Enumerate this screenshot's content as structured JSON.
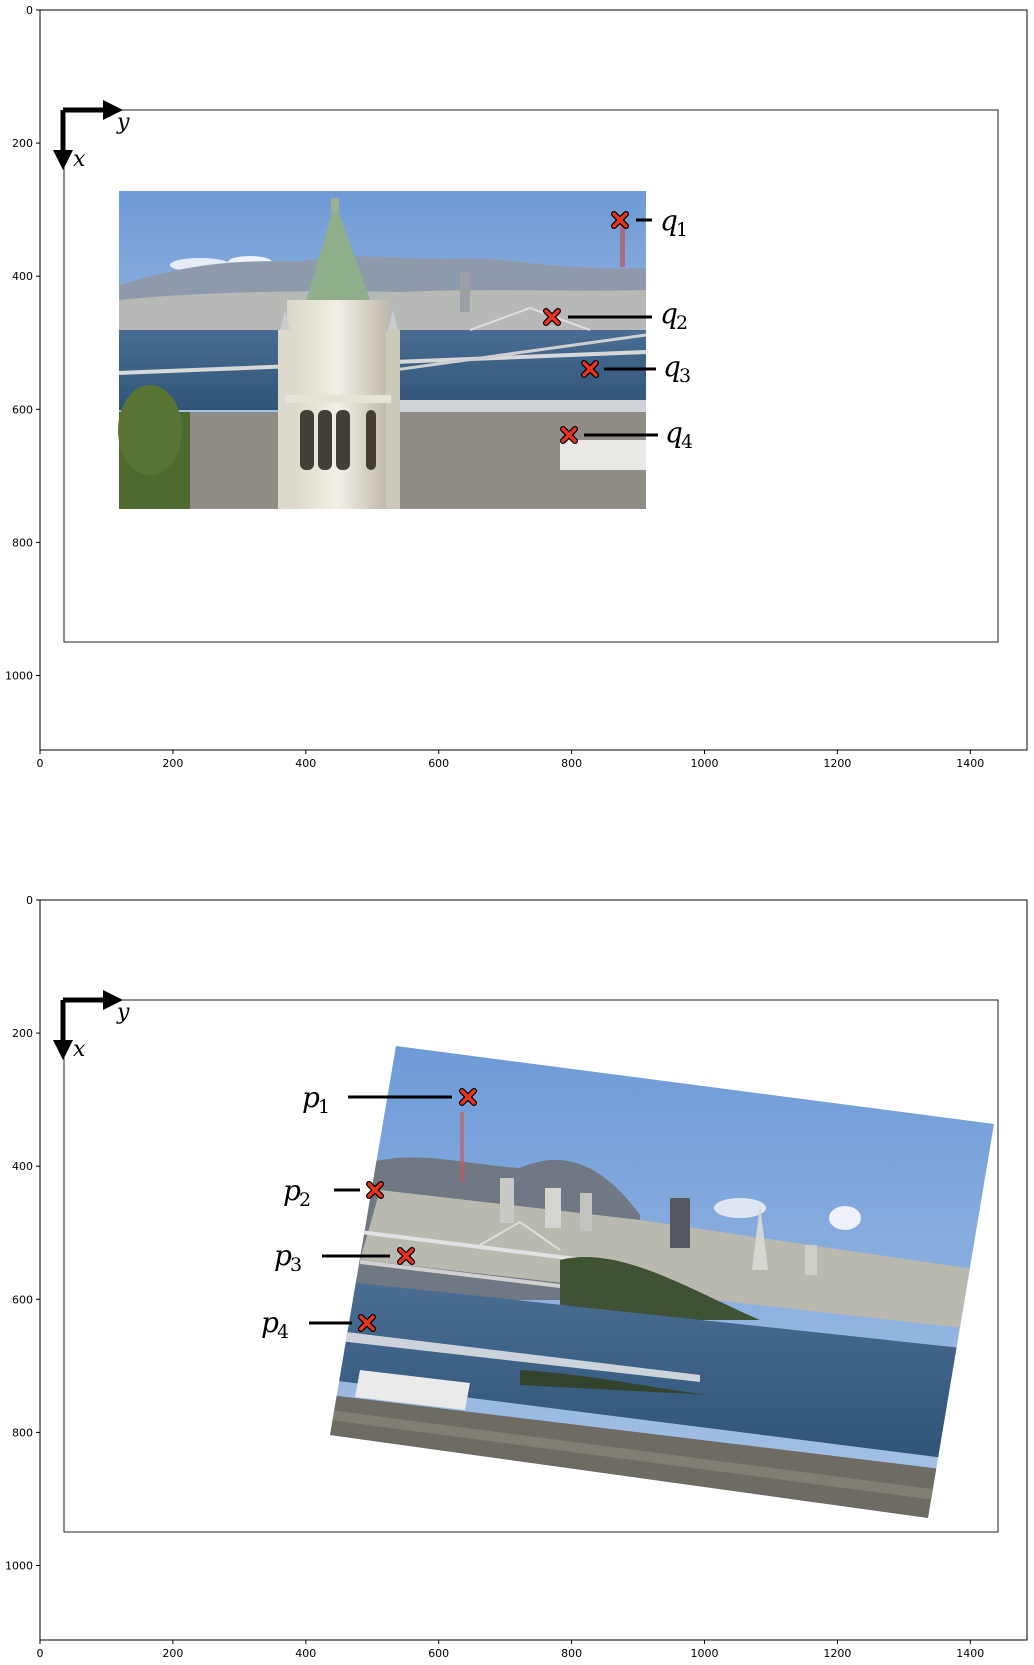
{
  "panels": [
    {
      "id": "top",
      "x_ticks": [
        "0",
        "200",
        "400",
        "600",
        "800",
        "1000",
        "1200",
        "1400"
      ],
      "y_ticks": [
        "0",
        "200",
        "400",
        "600",
        "800",
        "1000"
      ],
      "axis_arrow_labels": {
        "horizontal": "y",
        "vertical": "x"
      },
      "points": [
        {
          "letter": "q",
          "sub": "1"
        },
        {
          "letter": "q",
          "sub": "2"
        },
        {
          "letter": "q",
          "sub": "3"
        },
        {
          "letter": "q",
          "sub": "4"
        }
      ],
      "marker_color": "#e8341c"
    },
    {
      "id": "bottom",
      "x_ticks": [
        "0",
        "200",
        "400",
        "600",
        "800",
        "1000",
        "1200",
        "1400"
      ],
      "y_ticks": [
        "0",
        "200",
        "400",
        "600",
        "800",
        "1000"
      ],
      "axis_arrow_labels": {
        "horizontal": "y",
        "vertical": "x"
      },
      "points": [
        {
          "letter": "p",
          "sub": "1"
        },
        {
          "letter": "p",
          "sub": "2"
        },
        {
          "letter": "p",
          "sub": "3"
        },
        {
          "letter": "p",
          "sub": "4"
        }
      ],
      "marker_color": "#e8341c"
    }
  ],
  "colors": {
    "sky_top": "#7ea6dc",
    "sky_bottom": "#b6cde8",
    "water": "#3e6389",
    "city": "#b9b9b0"
  }
}
